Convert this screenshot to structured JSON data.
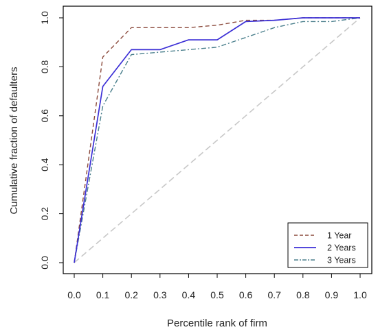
{
  "chart_data": {
    "type": "line",
    "title": "",
    "xlabel": "Percentile rank of firm",
    "ylabel": "Cumulative fraction of defaulters",
    "xlim": [
      0.0,
      1.0
    ],
    "ylim": [
      0.0,
      1.0
    ],
    "x_ticks": [
      "0.0",
      "0.1",
      "0.2",
      "0.3",
      "0.4",
      "0.5",
      "0.6",
      "0.7",
      "0.8",
      "0.9",
      "1.0"
    ],
    "y_ticks": [
      "0.0",
      "0.2",
      "0.4",
      "0.6",
      "0.8",
      "1.0"
    ],
    "grid": false,
    "legend_position": "bottom-right",
    "x": [
      0.0,
      0.1,
      0.2,
      0.3,
      0.4,
      0.5,
      0.6,
      0.7,
      0.8,
      0.9,
      1.0
    ],
    "series": [
      {
        "name": "1 Year",
        "values": [
          0.0,
          0.84,
          0.96,
          0.96,
          0.96,
          0.97,
          0.99,
          0.99,
          1.0,
          1.0,
          1.0
        ],
        "color": "#8b4a3c",
        "dash": "dashed"
      },
      {
        "name": "2 Years",
        "values": [
          0.0,
          0.72,
          0.87,
          0.87,
          0.91,
          0.91,
          0.985,
          0.99,
          1.0,
          1.0,
          1.0
        ],
        "color": "#3b2fd6",
        "dash": "solid"
      },
      {
        "name": "3 Years",
        "values": [
          0.0,
          0.64,
          0.85,
          0.86,
          0.87,
          0.88,
          0.92,
          0.96,
          0.985,
          0.985,
          1.0
        ],
        "color": "#4a7f8c",
        "dash": "dashdot"
      }
    ],
    "reference_line": {
      "x": [
        0.0,
        1.0
      ],
      "values": [
        0.0,
        1.0
      ],
      "color": "#c8c8c8"
    }
  }
}
